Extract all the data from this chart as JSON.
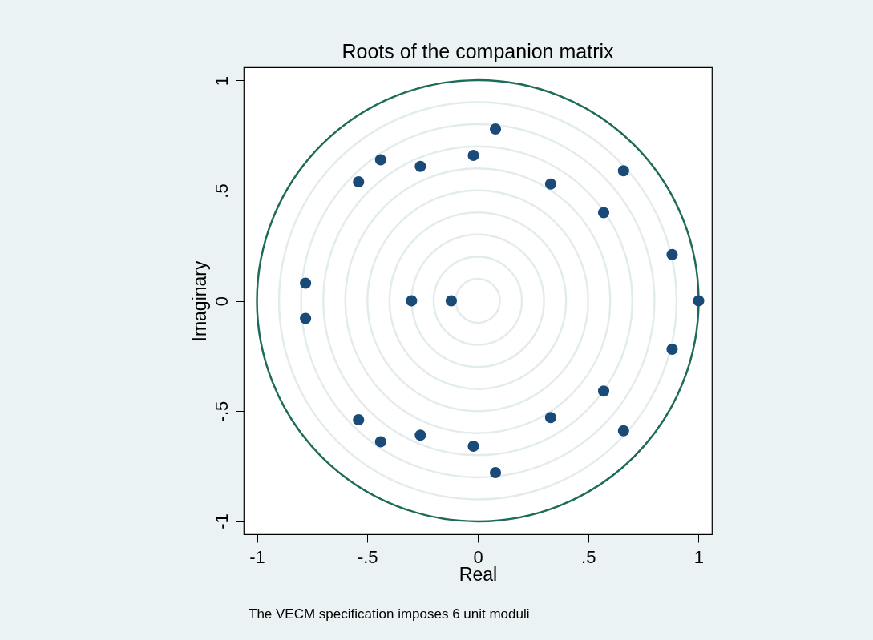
{
  "chart_data": {
    "type": "scatter",
    "title": "Roots of the companion matrix",
    "xlabel": "Real",
    "ylabel": "Imaginary",
    "annotations": [
      "The VECM specification imposes 6 unit moduli"
    ],
    "xlim": [
      -1.06,
      1.06
    ],
    "ylim": [
      -1.06,
      1.06
    ],
    "xticks": [
      -1,
      {
        "value": -0.5,
        "label": "-.5"
      },
      0,
      {
        "value": 0.5,
        "label": ".5"
      },
      1
    ],
    "yticks": [
      -1,
      {
        "value": -0.5,
        "label": "-.5"
      },
      0,
      {
        "value": 0.5,
        "label": ".5"
      },
      1
    ],
    "marker": "circle",
    "series": [
      {
        "color": "#1a4a78",
        "x": [
          1,
          0.88,
          0.88,
          0.66,
          0.66,
          0.57,
          0.57,
          0.33,
          0.33,
          0.08,
          0.08,
          -0.02,
          -0.02,
          -0.26,
          -0.26,
          -0.44,
          -0.44,
          -0.54,
          -0.54,
          -0.78,
          -0.78,
          -0.3,
          -0.12
        ],
        "values": [
          0,
          0.21,
          -0.22,
          0.59,
          -0.59,
          0.4,
          -0.41,
          0.53,
          -0.53,
          0.78,
          -0.78,
          0.66,
          -0.66,
          0.61,
          -0.61,
          0.64,
          -0.64,
          0.54,
          -0.54,
          0.08,
          -0.08,
          0,
          0
        ]
      }
    ]
  }
}
